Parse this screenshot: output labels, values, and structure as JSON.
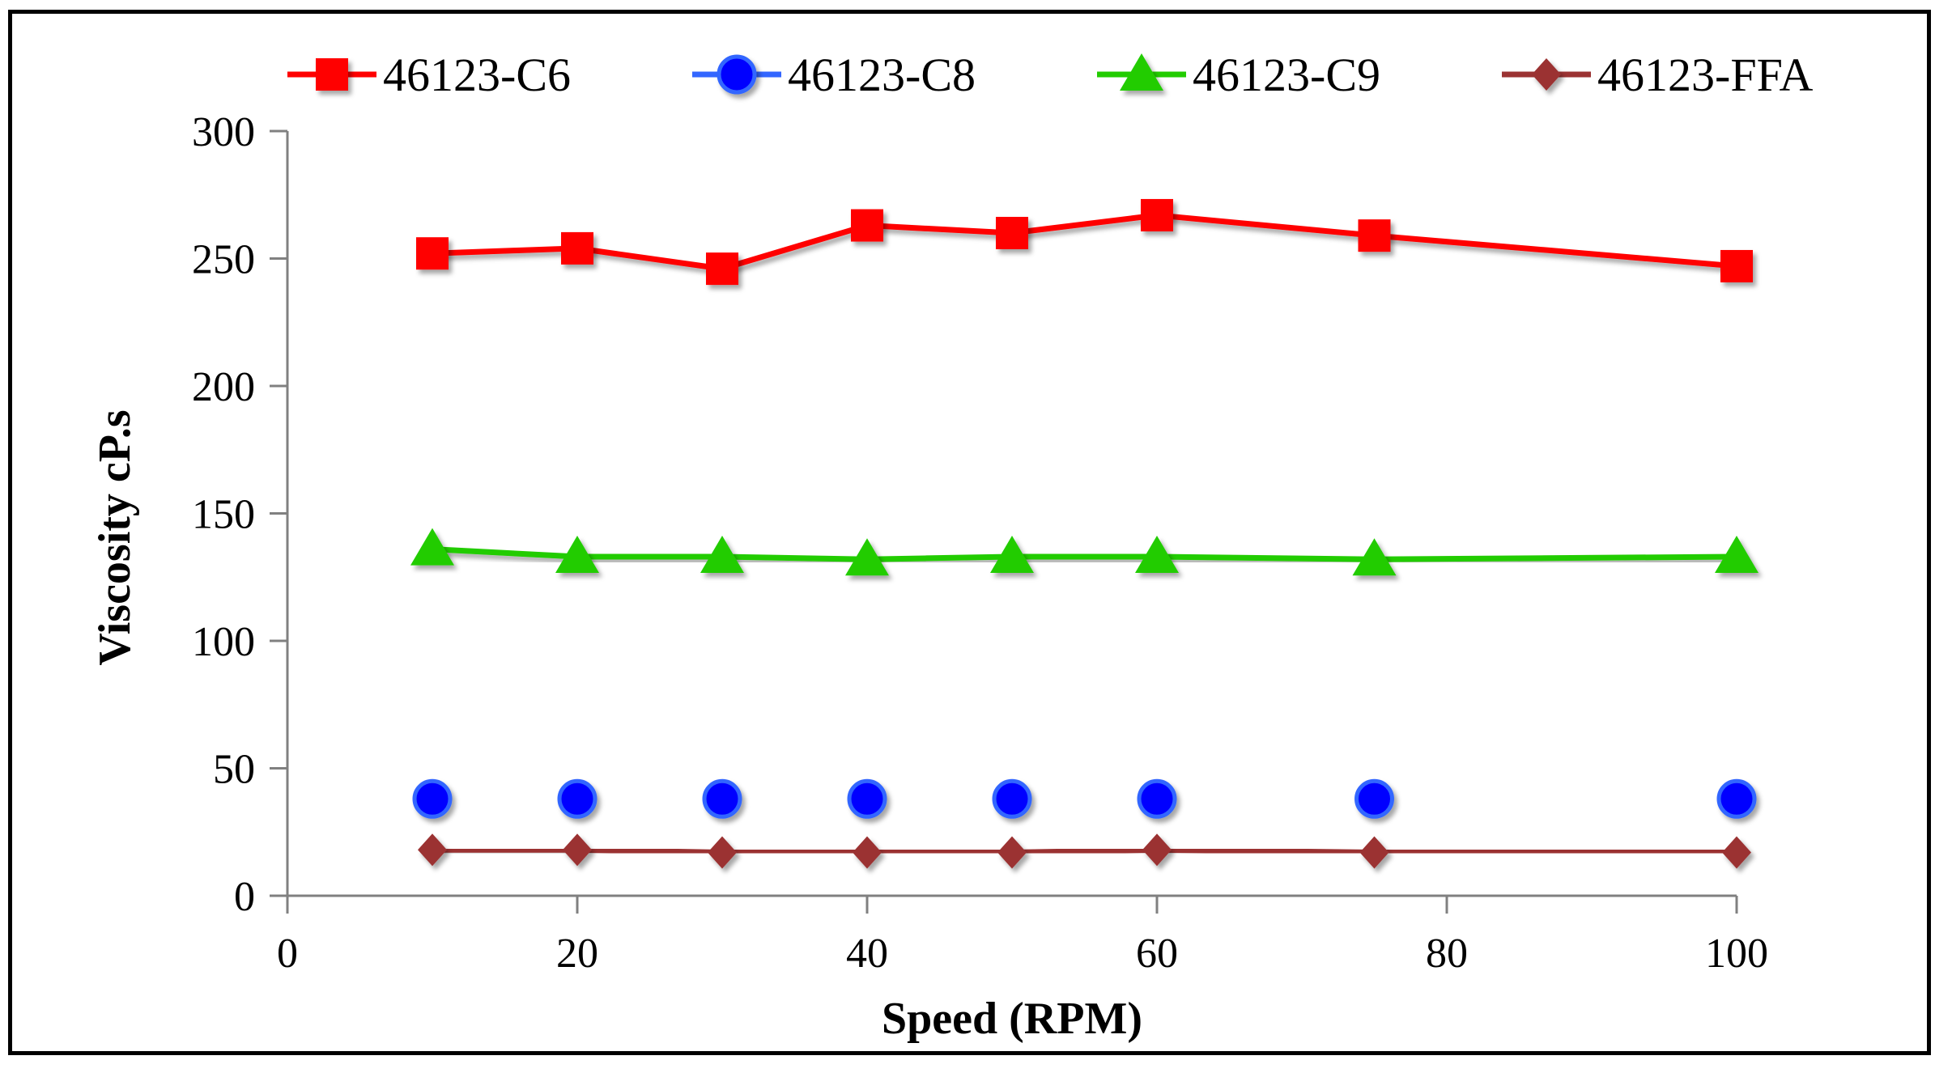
{
  "chart_data": {
    "type": "line",
    "title": "",
    "xlabel": "Speed (RPM)",
    "ylabel": "Viscosity cP.s",
    "xlim": [
      0,
      100
    ],
    "ylim": [
      0,
      300
    ],
    "xticks": [
      0,
      20,
      40,
      60,
      80,
      100
    ],
    "yticks": [
      0,
      50,
      100,
      150,
      200,
      250,
      300
    ],
    "grid": false,
    "legend_position": "top",
    "x": [
      10,
      20,
      30,
      40,
      50,
      60,
      75,
      100
    ],
    "series": [
      {
        "name": "46123-C6",
        "color": "#ff0000",
        "marker": "square",
        "values": [
          252,
          254,
          246,
          263,
          260,
          267,
          259,
          247
        ]
      },
      {
        "name": "46123-C8",
        "color": "#0000ff",
        "line_color": "#3366ff",
        "marker": "circle",
        "values": [
          38,
          38,
          38,
          38,
          38,
          38,
          38,
          38
        ]
      },
      {
        "name": "46123-C9",
        "color": "#22cc00",
        "marker": "triangle",
        "values": [
          136,
          133,
          133,
          132,
          133,
          133,
          132,
          133
        ]
      },
      {
        "name": "46123-FFA",
        "color": "#9b3333",
        "marker": "diamond",
        "values": [
          18,
          18,
          17,
          17,
          17,
          18,
          17,
          17
        ]
      }
    ]
  }
}
